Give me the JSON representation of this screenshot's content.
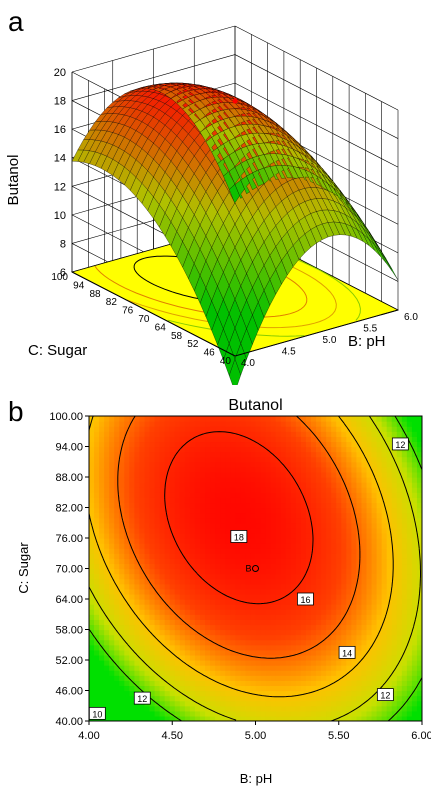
{
  "panels": {
    "a": {
      "letter": "a",
      "chart_data": {
        "type": "surface3d",
        "zlabel": "Butanol",
        "xlabel": "B: pH",
        "ylabel": "C: Sugar",
        "x_ticks": [
          "4.0",
          "4.5",
          "5.0",
          "5.5",
          "6.0"
        ],
        "y_ticks": [
          "40",
          "46",
          "52",
          "58",
          "64",
          "70",
          "76",
          "82",
          "88",
          "94",
          "100"
        ],
        "z_ticks": [
          "6",
          "8",
          "10",
          "12",
          "14",
          "16",
          "18",
          "20"
        ],
        "xlim": [
          4.0,
          6.0
        ],
        "ylim": [
          40,
          100
        ],
        "zlim": [
          6,
          20
        ],
        "design_point": {
          "x": 5.0,
          "y": 70,
          "z": 18.5
        },
        "colormap": [
          "#00c000",
          "#b0c000",
          "#ff0000"
        ]
      }
    },
    "b": {
      "letter": "b",
      "chart_data": {
        "type": "contour",
        "title": "Butanol",
        "xlabel": "B: pH",
        "ylabel": "C: Sugar",
        "x_ticks": [
          "4.00",
          "4.50",
          "5.00",
          "5.50",
          "6.00"
        ],
        "y_ticks": [
          "40.00",
          "46.00",
          "52.00",
          "58.00",
          "64.00",
          "70.00",
          "76.00",
          "82.00",
          "88.00",
          "94.00",
          "100.00"
        ],
        "xlim": [
          4.0,
          6.0
        ],
        "ylim": [
          40,
          100
        ],
        "levels": [
          {
            "value": 10,
            "label": "10"
          },
          {
            "value": 12,
            "label": "12"
          },
          {
            "value": 14,
            "label": "14"
          },
          {
            "value": 16,
            "label": "16"
          },
          {
            "value": 18,
            "label": "18"
          }
        ],
        "center_point": {
          "x": 5.0,
          "y": 70,
          "label": "B"
        }
      }
    }
  }
}
